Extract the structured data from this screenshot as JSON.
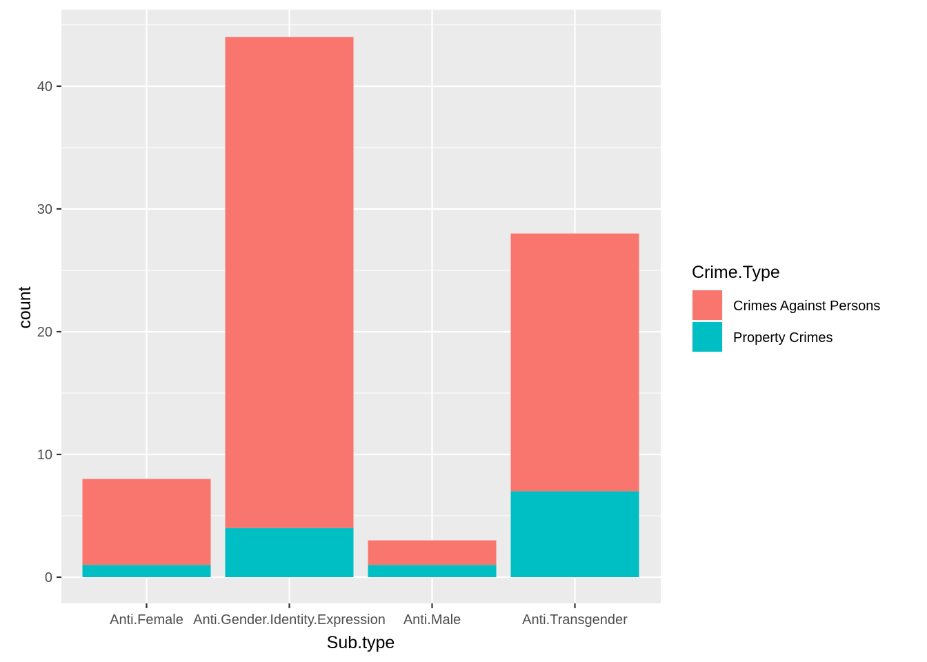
{
  "chart_data": {
    "type": "bar",
    "stacked": true,
    "title": "",
    "xlabel": "Sub.type",
    "ylabel": "count",
    "categories": [
      "Anti.Female",
      "Anti.Gender.Identity.Expression",
      "Anti.Male",
      "Anti.Transgender"
    ],
    "series": [
      {
        "name": "Crimes Against Persons",
        "values": [
          7,
          40,
          2,
          21
        ],
        "color": "#F8766D"
      },
      {
        "name": "Property Crimes",
        "values": [
          1,
          4,
          1,
          7
        ],
        "color": "#00BFC4"
      }
    ],
    "ylim": [
      -2,
      46.2
    ],
    "yticks": [
      0,
      10,
      20,
      30,
      40
    ],
    "grid": true,
    "panel_background": "#EBEBEB",
    "legend": {
      "title": "Crime.Type",
      "placement": "right"
    }
  }
}
